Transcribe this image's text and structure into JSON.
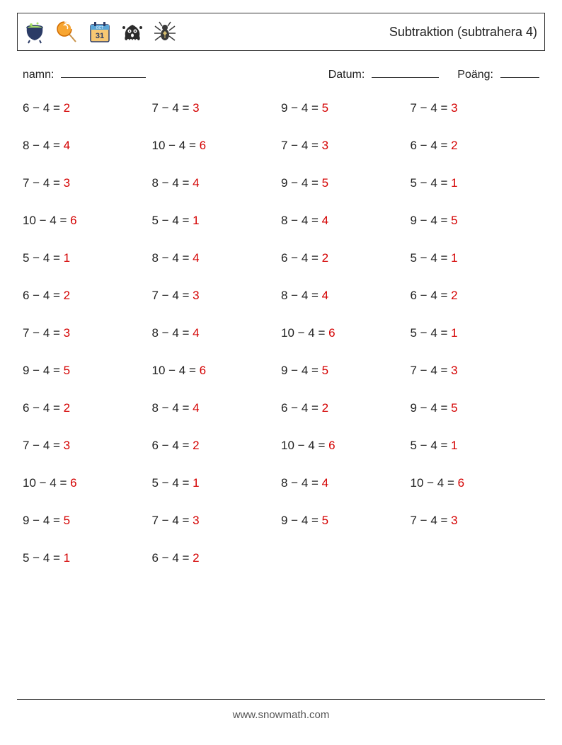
{
  "title": "Subtraktion (subtrahera 4)",
  "meta": {
    "name_label": "namn:",
    "date_label": "Datum:",
    "score_label": "Poäng:"
  },
  "colors": {
    "answer": "#d40000",
    "text": "#222222",
    "border": "#333333",
    "background": "#ffffff"
  },
  "icons": [
    "cauldron-icon",
    "lollipop-icon",
    "calendar-31-icon",
    "ghost-icon",
    "spider-icon"
  ],
  "problems": [
    [
      {
        "a": 6,
        "b": 4,
        "r": 2
      },
      {
        "a": 7,
        "b": 4,
        "r": 3
      },
      {
        "a": 9,
        "b": 4,
        "r": 5
      },
      {
        "a": 7,
        "b": 4,
        "r": 3
      }
    ],
    [
      {
        "a": 8,
        "b": 4,
        "r": 4
      },
      {
        "a": 10,
        "b": 4,
        "r": 6
      },
      {
        "a": 7,
        "b": 4,
        "r": 3
      },
      {
        "a": 6,
        "b": 4,
        "r": 2
      }
    ],
    [
      {
        "a": 7,
        "b": 4,
        "r": 3
      },
      {
        "a": 8,
        "b": 4,
        "r": 4
      },
      {
        "a": 9,
        "b": 4,
        "r": 5
      },
      {
        "a": 5,
        "b": 4,
        "r": 1
      }
    ],
    [
      {
        "a": 10,
        "b": 4,
        "r": 6
      },
      {
        "a": 5,
        "b": 4,
        "r": 1
      },
      {
        "a": 8,
        "b": 4,
        "r": 4
      },
      {
        "a": 9,
        "b": 4,
        "r": 5
      }
    ],
    [
      {
        "a": 5,
        "b": 4,
        "r": 1
      },
      {
        "a": 8,
        "b": 4,
        "r": 4
      },
      {
        "a": 6,
        "b": 4,
        "r": 2
      },
      {
        "a": 5,
        "b": 4,
        "r": 1
      }
    ],
    [
      {
        "a": 6,
        "b": 4,
        "r": 2
      },
      {
        "a": 7,
        "b": 4,
        "r": 3
      },
      {
        "a": 8,
        "b": 4,
        "r": 4
      },
      {
        "a": 6,
        "b": 4,
        "r": 2
      }
    ],
    [
      {
        "a": 7,
        "b": 4,
        "r": 3
      },
      {
        "a": 8,
        "b": 4,
        "r": 4
      },
      {
        "a": 10,
        "b": 4,
        "r": 6
      },
      {
        "a": 5,
        "b": 4,
        "r": 1
      }
    ],
    [
      {
        "a": 9,
        "b": 4,
        "r": 5
      },
      {
        "a": 10,
        "b": 4,
        "r": 6
      },
      {
        "a": 9,
        "b": 4,
        "r": 5
      },
      {
        "a": 7,
        "b": 4,
        "r": 3
      }
    ],
    [
      {
        "a": 6,
        "b": 4,
        "r": 2
      },
      {
        "a": 8,
        "b": 4,
        "r": 4
      },
      {
        "a": 6,
        "b": 4,
        "r": 2
      },
      {
        "a": 9,
        "b": 4,
        "r": 5
      }
    ],
    [
      {
        "a": 7,
        "b": 4,
        "r": 3
      },
      {
        "a": 6,
        "b": 4,
        "r": 2
      },
      {
        "a": 10,
        "b": 4,
        "r": 6
      },
      {
        "a": 5,
        "b": 4,
        "r": 1
      }
    ],
    [
      {
        "a": 10,
        "b": 4,
        "r": 6
      },
      {
        "a": 5,
        "b": 4,
        "r": 1
      },
      {
        "a": 8,
        "b": 4,
        "r": 4
      },
      {
        "a": 10,
        "b": 4,
        "r": 6
      }
    ],
    [
      {
        "a": 9,
        "b": 4,
        "r": 5
      },
      {
        "a": 7,
        "b": 4,
        "r": 3
      },
      {
        "a": 9,
        "b": 4,
        "r": 5
      },
      {
        "a": 7,
        "b": 4,
        "r": 3
      }
    ],
    [
      {
        "a": 5,
        "b": 4,
        "r": 1
      },
      {
        "a": 6,
        "b": 4,
        "r": 2
      }
    ]
  ],
  "footer": "www.snowmath.com"
}
